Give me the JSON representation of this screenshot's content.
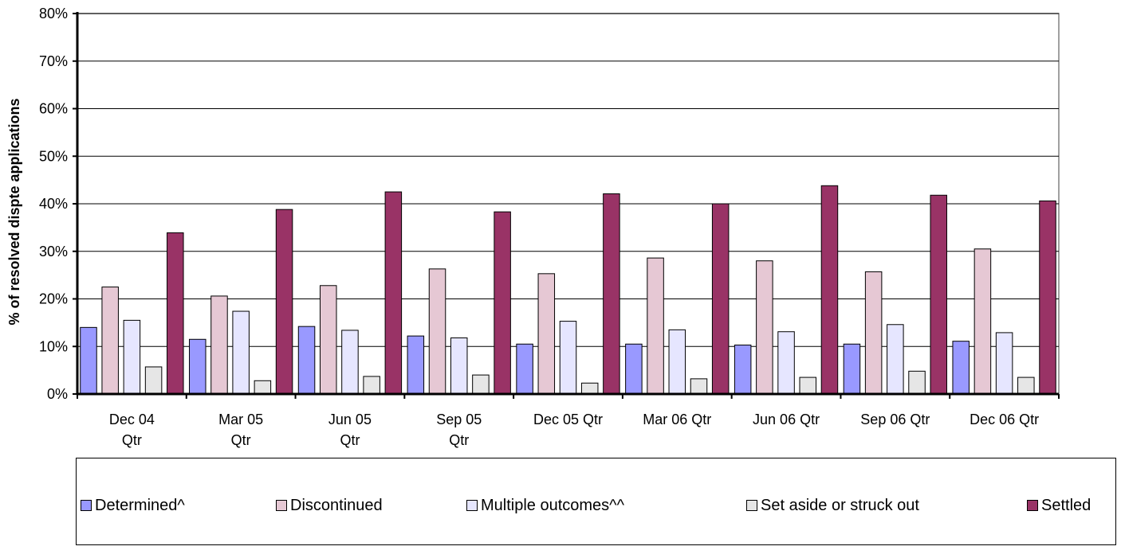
{
  "chart_data": {
    "type": "bar",
    "ylabel": "% of resolved dispte applications",
    "xlabel": "",
    "ylim": [
      0,
      80
    ],
    "y_ticks": [
      "0%",
      "10%",
      "20%",
      "30%",
      "40%",
      "50%",
      "60%",
      "70%",
      "80%"
    ],
    "y_tick_values": [
      0,
      10,
      20,
      30,
      40,
      50,
      60,
      70,
      80
    ],
    "grid": true,
    "legend_position": "bottom",
    "categories": [
      [
        "Dec 04",
        "Qtr"
      ],
      [
        "Mar 05",
        "Qtr"
      ],
      [
        "Jun 05",
        "Qtr"
      ],
      [
        "Sep 05",
        "Qtr"
      ],
      [
        "Dec 05 Qtr"
      ],
      [
        "Mar 06 Qtr"
      ],
      [
        "Jun 06 Qtr"
      ],
      [
        "Sep 06 Qtr"
      ],
      [
        "Dec 06 Qtr"
      ]
    ],
    "series": [
      {
        "name": "Determined^",
        "color": "#9999ff",
        "values": [
          14.0,
          11.5,
          14.2,
          12.2,
          10.5,
          10.5,
          10.3,
          10.5,
          11.1
        ]
      },
      {
        "name": "Discontinued",
        "color": "#e6c8d4",
        "values": [
          22.5,
          20.6,
          22.8,
          26.3,
          25.3,
          28.6,
          28.0,
          25.7,
          30.5
        ]
      },
      {
        "name": "Multiple outcomes^^",
        "color": "#e6e6ff",
        "values": [
          15.5,
          17.4,
          13.4,
          11.8,
          15.3,
          13.5,
          13.1,
          14.6,
          12.9
        ]
      },
      {
        "name": "Set aside or struck out",
        "color": "#e6e6e6",
        "values": [
          5.7,
          2.8,
          3.7,
          4.0,
          2.3,
          3.2,
          3.5,
          4.8,
          3.5
        ]
      },
      {
        "name": "Settled",
        "color": "#993366",
        "values": [
          33.9,
          38.8,
          42.5,
          38.3,
          42.1,
          40.0,
          43.8,
          41.8,
          40.6
        ]
      }
    ]
  }
}
